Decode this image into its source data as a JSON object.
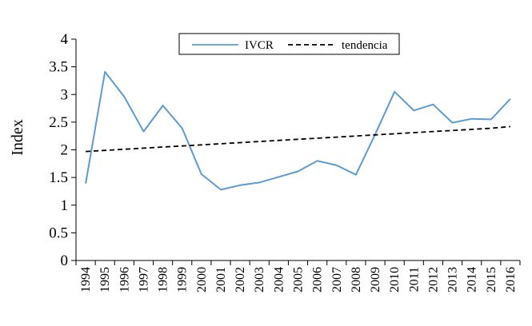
{
  "chart_data": {
    "type": "line",
    "title": "",
    "xlabel": "",
    "ylabel": "Index",
    "ylim": [
      0,
      4
    ],
    "yticks": [
      "0",
      "0.5",
      "1",
      "1.5",
      "2",
      "2.5",
      "3",
      "3.5",
      "4"
    ],
    "categories": [
      "1994",
      "1995",
      "1996",
      "1997",
      "1998",
      "1999",
      "2000",
      "2001",
      "2002",
      "2003",
      "2004",
      "2005",
      "2006",
      "2007",
      "2008",
      "2009",
      "2010",
      "2011",
      "2012",
      "2013",
      "2014",
      "2015",
      "2016"
    ],
    "series": [
      {
        "name": "IVCR",
        "color": "#5b9bd5",
        "style": "solid",
        "values": [
          1.39,
          3.41,
          2.96,
          2.33,
          2.8,
          2.39,
          1.56,
          1.28,
          1.36,
          1.41,
          1.51,
          1.61,
          1.8,
          1.72,
          1.55,
          2.28,
          3.05,
          2.71,
          2.82,
          2.49,
          2.56,
          2.55,
          2.92
        ]
      },
      {
        "name": "tendencia",
        "color": "#000000",
        "style": "dashed",
        "values": [
          1.97,
          1.99,
          2.01,
          2.03,
          2.05,
          2.07,
          2.09,
          2.11,
          2.13,
          2.15,
          2.17,
          2.19,
          2.21,
          2.23,
          2.25,
          2.27,
          2.29,
          2.31,
          2.33,
          2.35,
          2.37,
          2.39,
          2.42
        ]
      }
    ],
    "legend_position": "top-center",
    "grid": false
  }
}
